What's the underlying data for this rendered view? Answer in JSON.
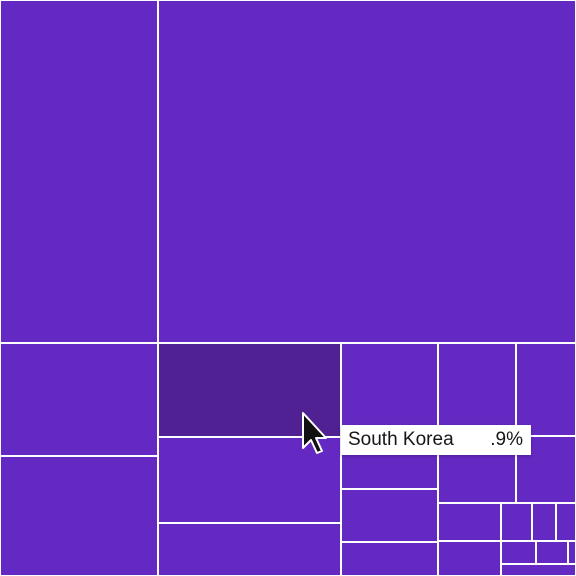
{
  "theme": {
    "tile_color": "#6529c3",
    "hover_color": "#4f2193",
    "divider_color": "#ffffff"
  },
  "tooltip": {
    "label": "South Korea",
    "value": ".9%"
  },
  "cursor_icon": "arrow-pointer-icon"
}
